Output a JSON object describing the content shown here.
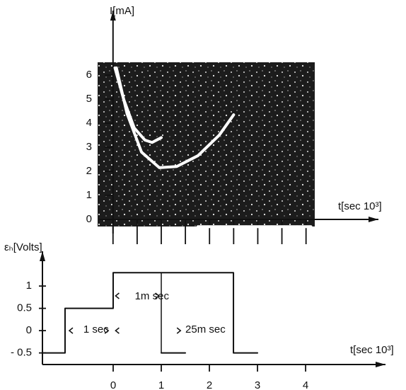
{
  "chart_data": [
    {
      "type": "line",
      "ylabel": "I[mA]",
      "xlabel": "t[sec 10³]",
      "xlim": [
        -0.29,
        5.5
      ],
      "ylim": [
        -1.03,
        8.68
      ],
      "xticks": [
        0,
        0.5,
        1,
        1.5,
        2,
        2.5,
        3,
        3.5,
        4
      ],
      "xticklabels": false,
      "yticks": [
        0,
        1,
        2,
        3,
        4,
        5,
        6
      ],
      "series": [
        {
          "color": "#ffffff",
          "x": [
            0.04,
            0.22,
            0.44,
            0.66,
            0.81,
            1.0
          ],
          "values": [
            6.3,
            5.0,
            3.8,
            3.3,
            3.2,
            3.4
          ]
        },
        {
          "color": "#ffffff",
          "x": [
            0.07,
            0.29,
            0.59,
            0.96,
            1.32,
            1.76,
            2.2,
            2.5
          ],
          "values": [
            6.3,
            4.4,
            2.8,
            2.15,
            2.2,
            2.65,
            3.5,
            4.35
          ]
        },
        {
          "color": "#ffffff",
          "x": [
            1.76,
            4.1
          ],
          "values": [
            -0.3,
            -0.3
          ]
        }
      ]
    },
    {
      "type": "line",
      "ylabel": "εₕ[Volts]",
      "xlabel": "t[sec 10³]",
      "xlim": [
        -1.47,
        5.66
      ],
      "ylim": [
        -0.76,
        1.78
      ],
      "xticks": [
        0,
        1,
        2,
        3,
        4
      ],
      "yticks": [
        1,
        0.5,
        0,
        {
          "value": -0.5,
          "label": "- 0.5"
        }
      ],
      "annotations": [
        "1 sec",
        "1m sec",
        "25m sec"
      ],
      "series": [
        {
          "color": "#111111",
          "x": [
            -1.47,
            -1,
            -1,
            0,
            0,
            2.5,
            2.5,
            3
          ],
          "values": [
            -0.5,
            -0.5,
            0.5,
            0.5,
            1.3,
            1.3,
            -0.5,
            -0.5
          ]
        },
        {
          "color": "#111111",
          "x": [
            1,
            1.5
          ],
          "values": [
            -0.5,
            -0.5
          ]
        }
      ]
    }
  ]
}
